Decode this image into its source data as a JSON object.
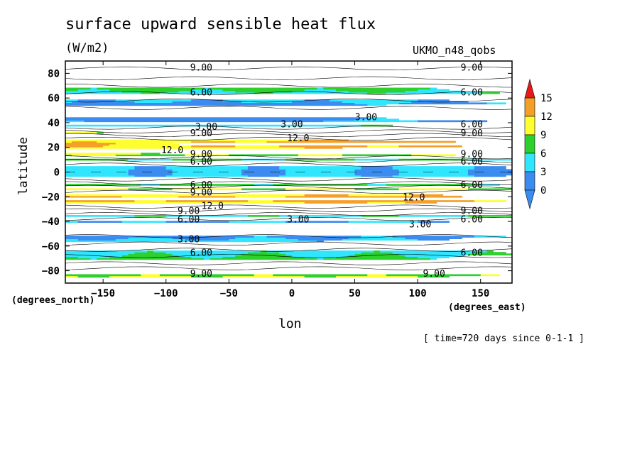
{
  "title": "surface upward sensible heat flux",
  "units": "(W/m2)",
  "dataset": "UKMO_n48_qobs",
  "xlabel": "lon",
  "ylabel": "latitude",
  "xunits": "(degrees_east)",
  "yunits": "(degrees_north)",
  "time_note": "[ time=720 days since 0-1-1 ]",
  "chart_data": {
    "type": "heatmap",
    "xlim": [
      -180,
      175
    ],
    "ylim": [
      -90,
      90
    ],
    "x_ticks": [
      -150,
      -100,
      -50,
      0,
      50,
      100,
      150
    ],
    "y_ticks": [
      80,
      60,
      40,
      20,
      0,
      -20,
      -40,
      -60,
      -80
    ],
    "colorbar": {
      "levels": [
        0,
        3,
        6,
        9,
        12,
        15
      ],
      "labels": [
        "0",
        "3",
        "6",
        "9",
        "12",
        "15"
      ],
      "colors": [
        "#3a8cf0",
        "#30e6ff",
        "#2ed02e",
        "#ffff30",
        "#f4a028",
        "#e81818"
      ],
      "extend": "both"
    },
    "contour_labels": [
      {
        "text": "9.00",
        "lon": -72,
        "lat": 85
      },
      {
        "text": "9.00",
        "lon": 143,
        "lat": 85
      },
      {
        "text": "6.00",
        "lon": -72,
        "lat": 65
      },
      {
        "text": "6.00",
        "lon": 143,
        "lat": 65
      },
      {
        "text": "3.00",
        "lon": -68,
        "lat": 37
      },
      {
        "text": "3.00",
        "lon": 0,
        "lat": 39
      },
      {
        "text": "3.00",
        "lon": 59,
        "lat": 45
      },
      {
        "text": "6.00",
        "lon": 143,
        "lat": 39
      },
      {
        "text": "9.00",
        "lon": -72,
        "lat": 32
      },
      {
        "text": "9.00",
        "lon": 143,
        "lat": 32
      },
      {
        "text": "12.0",
        "lon": 5,
        "lat": 28
      },
      {
        "text": "12.0",
        "lon": -95,
        "lat": 18
      },
      {
        "text": "9.00",
        "lon": -72,
        "lat": 15
      },
      {
        "text": "9.00",
        "lon": 143,
        "lat": 15
      },
      {
        "text": "6.00",
        "lon": -72,
        "lat": 9
      },
      {
        "text": "6.00",
        "lon": 143,
        "lat": 9
      },
      {
        "text": "6.00",
        "lon": -72,
        "lat": -10
      },
      {
        "text": "6.00",
        "lon": 143,
        "lat": -10
      },
      {
        "text": "9.00",
        "lon": -72,
        "lat": -16
      },
      {
        "text": "12.0",
        "lon": 97,
        "lat": -20
      },
      {
        "text": "12.0",
        "lon": -63,
        "lat": -27
      },
      {
        "text": "9.00",
        "lon": -82,
        "lat": -31
      },
      {
        "text": "9.00",
        "lon": 143,
        "lat": -31
      },
      {
        "text": "6.00",
        "lon": -82,
        "lat": -38
      },
      {
        "text": "6.00",
        "lon": 143,
        "lat": -38
      },
      {
        "text": "3.00",
        "lon": 5,
        "lat": -38
      },
      {
        "text": "3.00",
        "lon": 102,
        "lat": -42
      },
      {
        "text": "3.00",
        "lon": -82,
        "lat": -54
      },
      {
        "text": "6.00",
        "lon": -72,
        "lat": -65
      },
      {
        "text": "6.00",
        "lon": 143,
        "lat": -65
      },
      {
        "text": "9.00",
        "lon": -72,
        "lat": -82
      },
      {
        "text": "9.00",
        "lon": 113,
        "lat": -82
      }
    ]
  }
}
